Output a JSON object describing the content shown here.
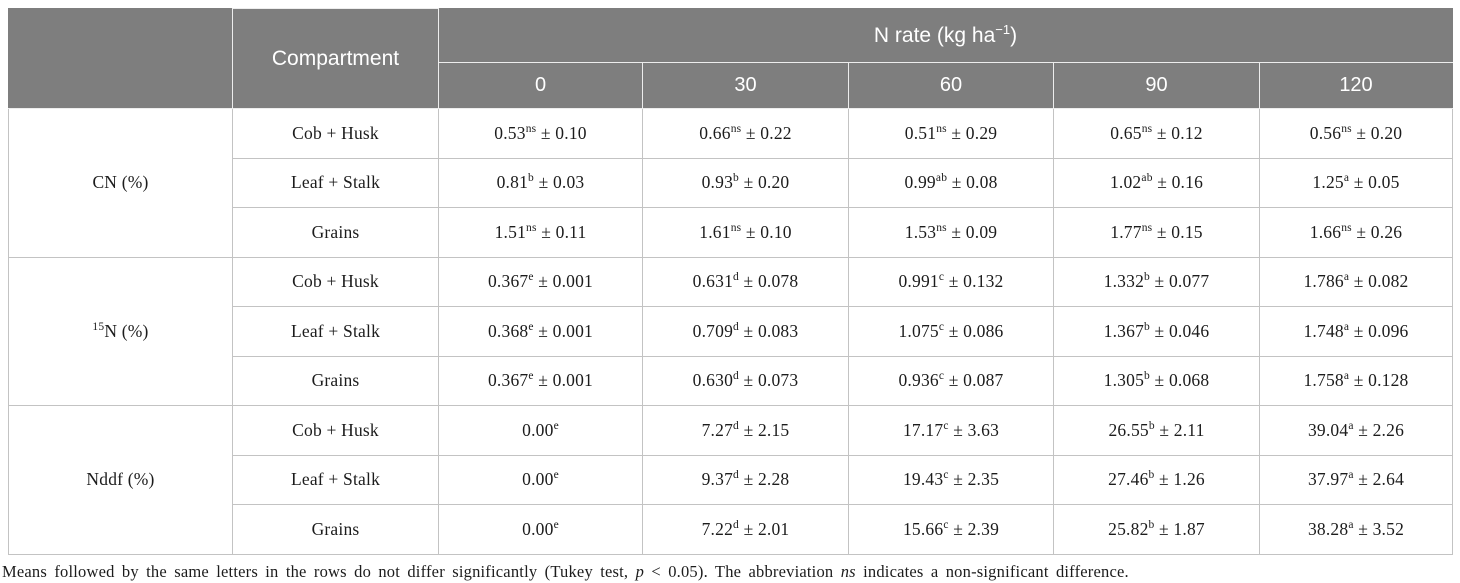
{
  "colors": {
    "header_bg": "#7e7e7e",
    "header_text": "#ffffff",
    "body_text": "#1c1c1c",
    "body_border": "#c3c3c3"
  },
  "table": {
    "header": {
      "compartment_label": "Compartment",
      "n_rate_label": {
        "pre": "N rate (kg ha",
        "sup": "−1",
        "post": ")"
      },
      "rates": [
        "0",
        "30",
        "60",
        "90",
        "120"
      ]
    },
    "groups": [
      {
        "label_sup": "",
        "label": "CN (%)",
        "rows": [
          {
            "compartment": "Cob + Husk",
            "cells": [
              {
                "v": "0.53",
                "s": "ns",
                "e": "0.10"
              },
              {
                "v": "0.66",
                "s": "ns",
                "e": "0.22"
              },
              {
                "v": "0.51",
                "s": "ns",
                "e": "0.29"
              },
              {
                "v": "0.65",
                "s": "ns",
                "e": "0.12"
              },
              {
                "v": "0.56",
                "s": "ns",
                "e": "0.20"
              }
            ]
          },
          {
            "compartment": "Leaf + Stalk",
            "cells": [
              {
                "v": "0.81",
                "s": "b",
                "e": "0.03"
              },
              {
                "v": "0.93",
                "s": "b",
                "e": "0.20"
              },
              {
                "v": "0.99",
                "s": "ab",
                "e": "0.08"
              },
              {
                "v": "1.02",
                "s": "ab",
                "e": "0.16"
              },
              {
                "v": "1.25",
                "s": "a",
                "e": "0.05"
              }
            ]
          },
          {
            "compartment": "Grains",
            "cells": [
              {
                "v": "1.51",
                "s": "ns",
                "e": "0.11"
              },
              {
                "v": "1.61",
                "s": "ns",
                "e": "0.10"
              },
              {
                "v": "1.53",
                "s": "ns",
                "e": "0.09"
              },
              {
                "v": "1.77",
                "s": "ns",
                "e": "0.15"
              },
              {
                "v": "1.66",
                "s": "ns",
                "e": "0.26"
              }
            ]
          }
        ]
      },
      {
        "label_sup": "15",
        "label": "N (%)",
        "rows": [
          {
            "compartment": "Cob + Husk",
            "cells": [
              {
                "v": "0.367",
                "s": "e",
                "e": "0.001"
              },
              {
                "v": "0.631",
                "s": "d",
                "e": "0.078"
              },
              {
                "v": "0.991",
                "s": "c",
                "e": "0.132"
              },
              {
                "v": "1.332",
                "s": "b",
                "e": "0.077"
              },
              {
                "v": "1.786",
                "s": "a",
                "e": "0.082"
              }
            ]
          },
          {
            "compartment": "Leaf + Stalk",
            "cells": [
              {
                "v": "0.368",
                "s": "e",
                "e": "0.001"
              },
              {
                "v": "0.709",
                "s": "d",
                "e": "0.083"
              },
              {
                "v": "1.075",
                "s": "c",
                "e": "0.086"
              },
              {
                "v": "1.367",
                "s": "b",
                "e": "0.046"
              },
              {
                "v": "1.748",
                "s": "a",
                "e": "0.096"
              }
            ]
          },
          {
            "compartment": "Grains",
            "cells": [
              {
                "v": "0.367",
                "s": "e",
                "e": "0.001"
              },
              {
                "v": "0.630",
                "s": "d",
                "e": "0.073"
              },
              {
                "v": "0.936",
                "s": "c",
                "e": "0.087"
              },
              {
                "v": "1.305",
                "s": "b",
                "e": "0.068"
              },
              {
                "v": "1.758",
                "s": "a",
                "e": "0.128"
              }
            ]
          }
        ]
      },
      {
        "label_sup": "",
        "label": "Nddf (%)",
        "rows": [
          {
            "compartment": "Cob + Husk",
            "cells": [
              {
                "v": "0.00",
                "s": "e",
                "e": null
              },
              {
                "v": "7.27",
                "s": "d",
                "e": "2.15"
              },
              {
                "v": "17.17",
                "s": "c",
                "e": "3.63"
              },
              {
                "v": "26.55",
                "s": "b",
                "e": "2.11"
              },
              {
                "v": "39.04",
                "s": "a",
                "e": "2.26"
              }
            ]
          },
          {
            "compartment": "Leaf + Stalk",
            "cells": [
              {
                "v": "0.00",
                "s": "e",
                "e": null
              },
              {
                "v": "9.37",
                "s": "d",
                "e": "2.28"
              },
              {
                "v": "19.43",
                "s": "c",
                "e": "2.35"
              },
              {
                "v": "27.46",
                "s": "b",
                "e": "1.26"
              },
              {
                "v": "37.97",
                "s": "a",
                "e": "2.64"
              }
            ]
          },
          {
            "compartment": "Grains",
            "cells": [
              {
                "v": "0.00",
                "s": "e",
                "e": null
              },
              {
                "v": "7.22",
                "s": "d",
                "e": "2.01"
              },
              {
                "v": "15.66",
                "s": "c",
                "e": "2.39"
              },
              {
                "v": "25.82",
                "s": "b",
                "e": "1.87"
              },
              {
                "v": "38.28",
                "s": "a",
                "e": "3.52"
              }
            ]
          }
        ]
      }
    ],
    "footnote_parts": [
      {
        "t": "Means followed by the same letters in the rows do not differ significantly (Tukey test, "
      },
      {
        "t": "p",
        "i": true
      },
      {
        "t": " < 0.05). The abbreviation "
      },
      {
        "t": "ns",
        "i": true
      },
      {
        "t": " indicates a non-significant difference."
      }
    ]
  }
}
